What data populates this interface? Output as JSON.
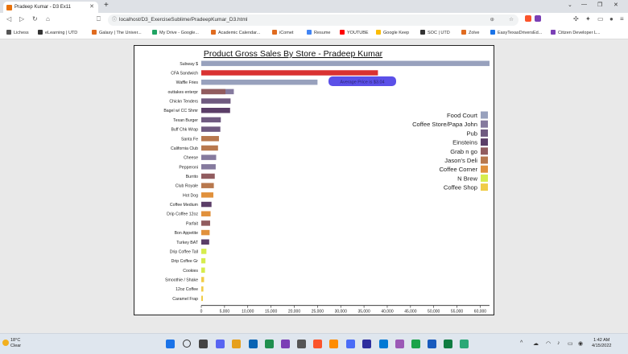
{
  "browser": {
    "tab_title": "Pradeep Kumar - D3 Ex11",
    "url": "localhost/D3_ExerciseSublime/PradeepKumar_D3.html",
    "bookmarks": [
      {
        "label": "Lichess",
        "color": "#555555"
      },
      {
        "label": "eLearning | UTD",
        "color": "#333333"
      },
      {
        "label": "Galaxy | The Univer...",
        "color": "#e06b1f"
      },
      {
        "label": "My Drive - Google...",
        "color": "#1fa463"
      },
      {
        "label": "Academic Calendar...",
        "color": "#e06b1f"
      },
      {
        "label": "iComet",
        "color": "#e06b1f"
      },
      {
        "label": "Resume",
        "color": "#4285f4"
      },
      {
        "label": "YOUTUBE",
        "color": "#ff0000"
      },
      {
        "label": "Google Keep",
        "color": "#fbbc04"
      },
      {
        "label": "SOC | UTD",
        "color": "#333333"
      },
      {
        "label": "Zolve",
        "color": "#e06b1f"
      },
      {
        "label": "EasyTexasDriversEd...",
        "color": "#1a73e8"
      },
      {
        "label": "Citizen Developer L...",
        "color": "#7b3fb5"
      }
    ]
  },
  "chart_data": {
    "type": "bar",
    "orientation": "horizontal",
    "title": "Product Gross Sales By Store - Pradeep Kumar",
    "tooltip": "Average Price is $3.04",
    "xlim": [
      0,
      62000
    ],
    "x_ticks": [
      "0",
      "5,000",
      "10,000",
      "15,000",
      "20,000",
      "25,000",
      "30,000",
      "35,000",
      "40,000",
      "45,000",
      "50,000",
      "55,000",
      "60,000"
    ],
    "categories": [
      "Subway $",
      "CFA Sandwich",
      "Waffle Fries",
      "outtakes enterpr",
      "Chickn Tenders",
      "Bagel w/ CC Shmr",
      "Texan Burger",
      "Buff Chk Wrap",
      "Santa Fe",
      "California Club",
      "Cheese",
      "Pepperoni",
      "Burrito",
      "Club Royale",
      "Hot Dog",
      "Coffee Medium",
      "Drip Coffee 12oz",
      "Parfait",
      "Bon Appetite",
      "Turkey BAT",
      "Drip Coffee Tall",
      "Drip Coffee Gr",
      "Cookies",
      "Smoothie / Shake",
      "12oz Coffee",
      "Caramel Frap"
    ],
    "series": [
      {
        "name": "Food Court",
        "color": "#98a1bd"
      },
      {
        "name": "Coffee Store/Papa John",
        "color": "#857a9e"
      },
      {
        "name": "Pub",
        "color": "#6f5a80"
      },
      {
        "name": "Einsteins",
        "color": "#5b3e68"
      },
      {
        "name": "Grab n go",
        "color": "#915c5f"
      },
      {
        "name": "Jason's Deli",
        "color": "#b8784d"
      },
      {
        "name": "Coffee Corner",
        "color": "#e1913c"
      },
      {
        "name": "N Brew",
        "color": "#d6ec4d"
      },
      {
        "name": "Coffee Shop",
        "color": "#f0cc47"
      }
    ],
    "bars": [
      {
        "segments": [
          {
            "series": 0,
            "value": 62000
          }
        ]
      },
      {
        "segments": [
          {
            "series": 0,
            "value": 38000,
            "color": "#d93232"
          }
        ]
      },
      {
        "segments": [
          {
            "series": 0,
            "value": 25000
          }
        ]
      },
      {
        "segments": [
          {
            "series": 4,
            "value": 5200
          },
          {
            "series": 1,
            "value": 7000
          }
        ]
      },
      {
        "segments": [
          {
            "series": 2,
            "value": 6300
          }
        ]
      },
      {
        "segments": [
          {
            "series": 3,
            "value": 6200
          }
        ]
      },
      {
        "segments": [
          {
            "series": 2,
            "value": 4200
          }
        ]
      },
      {
        "segments": [
          {
            "series": 2,
            "value": 4100
          }
        ]
      },
      {
        "segments": [
          {
            "series": 5,
            "value": 3800
          }
        ]
      },
      {
        "segments": [
          {
            "series": 5,
            "value": 3600
          }
        ]
      },
      {
        "segments": [
          {
            "series": 1,
            "value": 3200
          }
        ]
      },
      {
        "segments": [
          {
            "series": 1,
            "value": 3100
          }
        ]
      },
      {
        "segments": [
          {
            "series": 4,
            "value": 2900
          }
        ]
      },
      {
        "segments": [
          {
            "series": 5,
            "value": 2700
          }
        ]
      },
      {
        "segments": [
          {
            "series": 6,
            "value": 2600
          }
        ]
      },
      {
        "segments": [
          {
            "series": 3,
            "value": 2200
          }
        ]
      },
      {
        "segments": [
          {
            "series": 6,
            "value": 2000
          }
        ]
      },
      {
        "segments": [
          {
            "series": 4,
            "value": 1900
          }
        ]
      },
      {
        "segments": [
          {
            "series": 6,
            "value": 1800
          }
        ]
      },
      {
        "segments": [
          {
            "series": 3,
            "value": 1700
          }
        ]
      },
      {
        "segments": [
          {
            "series": 7,
            "value": 1100
          }
        ]
      },
      {
        "segments": [
          {
            "series": 7,
            "value": 900
          }
        ]
      },
      {
        "segments": [
          {
            "series": 7,
            "value": 800
          }
        ]
      },
      {
        "segments": [
          {
            "series": 8,
            "value": 600
          }
        ]
      },
      {
        "segments": [
          {
            "series": 8,
            "value": 450
          }
        ]
      },
      {
        "segments": [
          {
            "series": 8,
            "value": 350
          }
        ]
      }
    ],
    "legend": "right"
  },
  "taskbar": {
    "weather_temp": "18°C",
    "weather_desc": "Clear",
    "time": "1:42 AM",
    "date": "4/15/2022"
  }
}
